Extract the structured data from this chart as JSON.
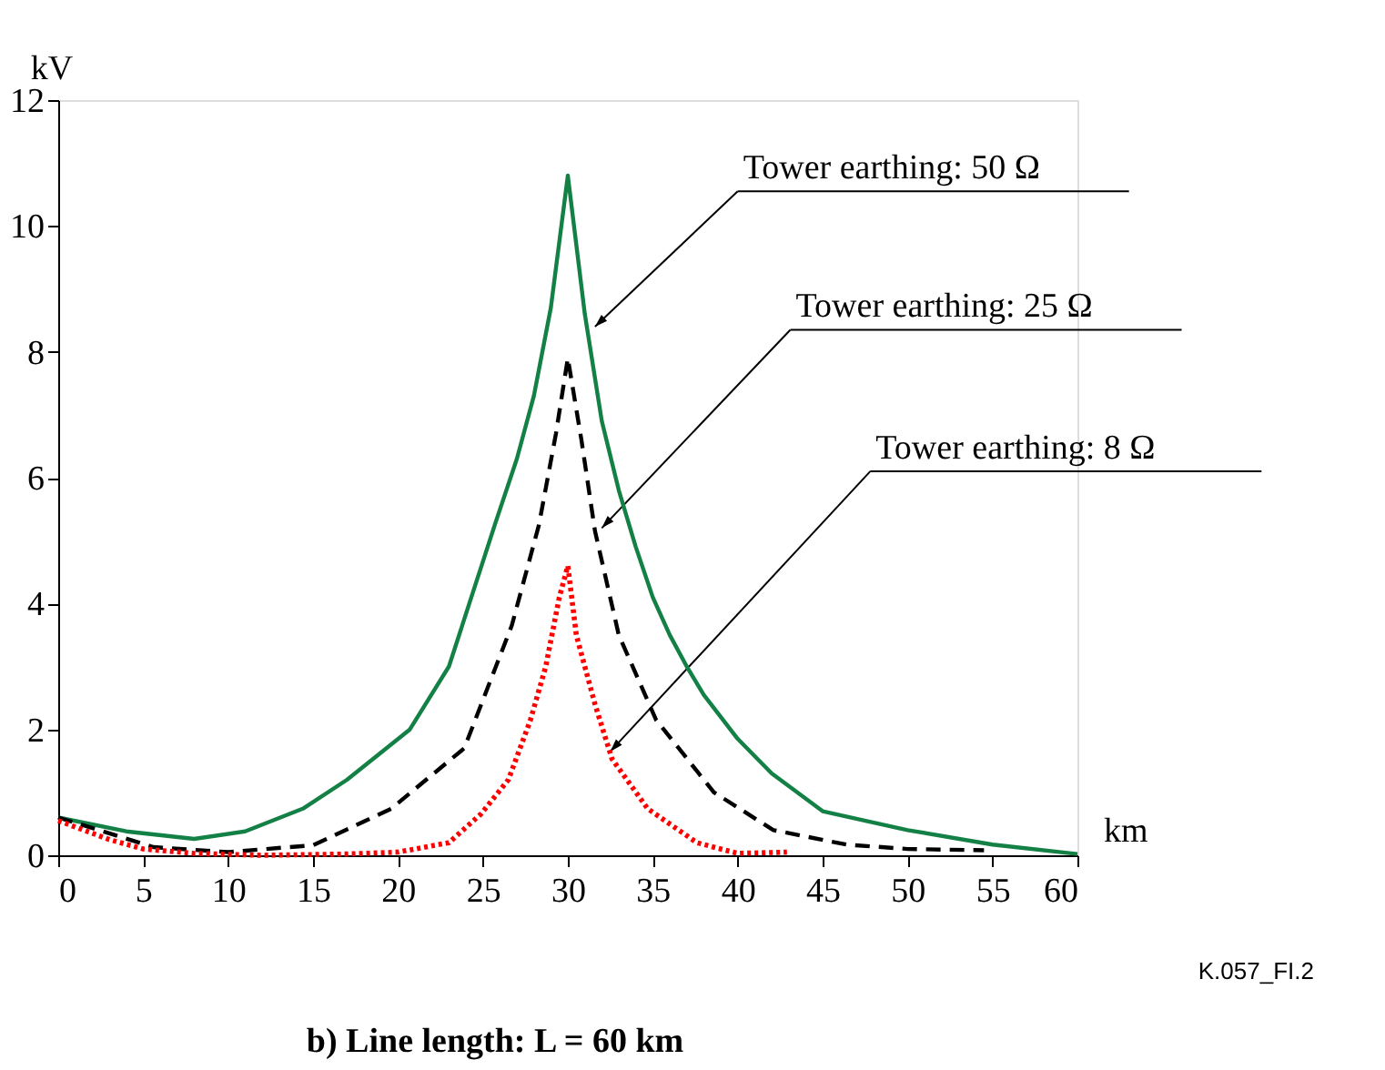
{
  "chart_data": {
    "type": "line",
    "title": "b) Line length: L = 60 km",
    "xlabel": "km",
    "ylabel": "kV",
    "xlim": [
      0,
      60
    ],
    "xticks": [
      0,
      5,
      10,
      15,
      20,
      25,
      30,
      35,
      40,
      45,
      50,
      55,
      60
    ],
    "ylim": [
      0,
      12
    ],
    "yticks": [
      0,
      2,
      4,
      6,
      8,
      10,
      12
    ],
    "grid": false,
    "legend": false,
    "marker": "none",
    "series": [
      {
        "color": "#138045",
        "line_style": "solid",
        "x": [
          0,
          4,
          8,
          11,
          14.4,
          17,
          20.7,
          23,
          25.7,
          27,
          28,
          29,
          30,
          31,
          32,
          33,
          34,
          35,
          36,
          37,
          38,
          40,
          42,
          45,
          50,
          55,
          60
        ],
        "values": [
          0.6,
          0.38,
          0.26,
          0.38,
          0.74,
          1.2,
          2.0,
          3.0,
          5.25,
          6.3,
          7.3,
          8.7,
          10.8,
          8.6,
          6.9,
          5.8,
          4.9,
          4.1,
          3.5,
          3.0,
          2.55,
          1.85,
          1.3,
          0.7,
          0.4,
          0.17,
          0.02
        ]
      },
      {
        "color": "#000000",
        "line_style": "dashed",
        "x": [
          0,
          5.6,
          10,
          15,
          19.6,
          23.9,
          26.7,
          28.3,
          29.3,
          30,
          30.8,
          31.6,
          33,
          35.2,
          38.6,
          42.1,
          46.4,
          50,
          54.5
        ],
        "values": [
          0.6,
          0.13,
          0.05,
          0.16,
          0.74,
          1.7,
          3.65,
          5.25,
          6.7,
          7.9,
          6.6,
          5.15,
          3.5,
          2.15,
          1.0,
          0.4,
          0.17,
          0.1,
          0.08
        ]
      },
      {
        "color": "#ff0000",
        "line_style": "dotted",
        "x": [
          0,
          3,
          5,
          8,
          12,
          17,
          20,
          23,
          24.9,
          26.5,
          27.8,
          28.7,
          29.5,
          30,
          30.5,
          31.6,
          32.6,
          34.7,
          37.6,
          40,
          42.9
        ],
        "values": [
          0.55,
          0.25,
          0.1,
          0.03,
          0.0,
          0.02,
          0.05,
          0.2,
          0.66,
          1.2,
          2.15,
          3.0,
          4.1,
          4.6,
          3.5,
          2.4,
          1.53,
          0.74,
          0.2,
          0.03,
          0.05
        ]
      }
    ],
    "annotations": [
      {
        "text": "Tower earthing: 50 Ω",
        "x": 31.6,
        "y": 8.4
      },
      {
        "text": "Tower earthing: 25 Ω",
        "x": 32,
        "y": 5.2
      },
      {
        "text": "Tower earthing: 8 Ω",
        "x": 32.5,
        "y": 1.65
      },
      "K.057_FI.2"
    ]
  }
}
